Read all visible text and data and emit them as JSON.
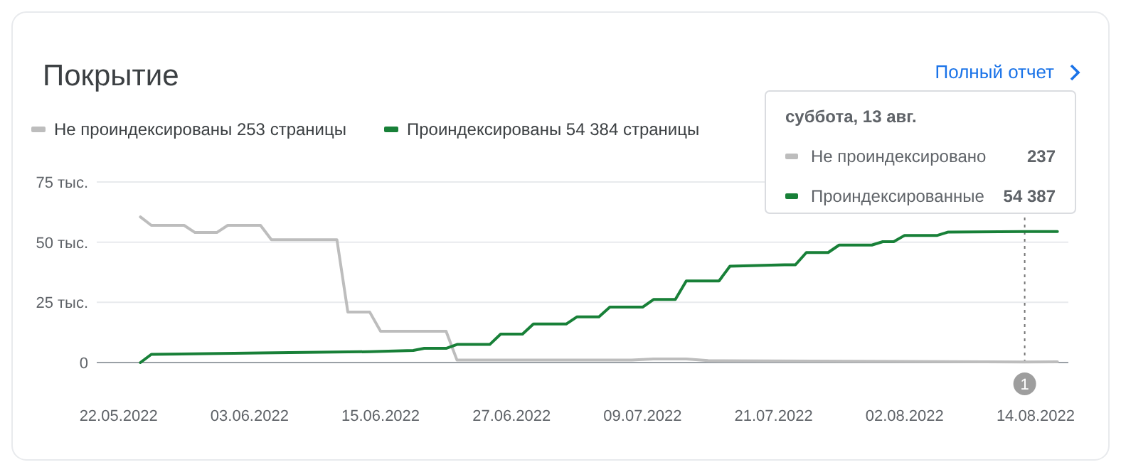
{
  "chart_data": {
    "type": "line",
    "title": "Покрытие",
    "legend": "top left",
    "grid": "y",
    "marker": "none",
    "line_style": "solid",
    "xlim": [
      "2022-05-20",
      "2022-08-17"
    ],
    "xticks": [
      {
        "value": "2022-05-22",
        "label": "22.05.2022"
      },
      {
        "value": "2022-06-03",
        "label": "03.06.2022"
      },
      {
        "value": "2022-06-15",
        "label": "15.06.2022"
      },
      {
        "value": "2022-06-27",
        "label": "27.06.2022"
      },
      {
        "value": "2022-07-09",
        "label": "09.07.2022"
      },
      {
        "value": "2022-07-21",
        "label": "21.07.2022"
      },
      {
        "value": "2022-08-02",
        "label": "02.08.2022"
      },
      {
        "value": "2022-08-14",
        "label": "14.08.2022"
      }
    ],
    "ylim": [
      0,
      75
    ],
    "yticks": [
      0,
      {
        "value": 25,
        "label": "25 тыс."
      },
      {
        "value": 50,
        "label": "50 тыс."
      },
      {
        "value": 75,
        "label": "75 тыс."
      }
    ],
    "series": [
      {
        "name": "Не проиндексированы 253 страницы",
        "color": "#bdbdbd",
        "x": [
          "2022-05-24",
          "2022-05-25",
          "2022-05-28",
          "2022-05-29",
          "2022-05-31",
          "2022-06-01",
          "2022-06-04",
          "2022-06-05",
          "2022-06-11",
          "2022-06-12",
          "2022-06-14",
          "2022-06-15",
          "2022-06-21",
          "2022-06-22",
          "2022-07-08",
          "2022-07-10",
          "2022-07-13",
          "2022-07-15",
          "2022-08-13",
          "2022-08-16"
        ],
        "values": [
          60.5,
          57,
          57,
          54,
          54,
          57,
          57,
          51,
          51,
          21,
          21,
          13,
          13,
          1,
          1,
          1.5,
          1.5,
          0.8,
          0.2,
          0.3
        ]
      },
      {
        "name": "Проиндексированы 54 384 страницы",
        "color": "#188038",
        "x": [
          "2022-05-24",
          "2022-05-25",
          "2022-06-04",
          "2022-06-14",
          "2022-06-18",
          "2022-06-19",
          "2022-06-21",
          "2022-06-22",
          "2022-06-25",
          "2022-06-26",
          "2022-06-28",
          "2022-06-29",
          "2022-07-02",
          "2022-07-03",
          "2022-07-05",
          "2022-07-06",
          "2022-07-09",
          "2022-07-10",
          "2022-07-12",
          "2022-07-13",
          "2022-07-16",
          "2022-07-17",
          "2022-07-22",
          "2022-07-23",
          "2022-07-24",
          "2022-07-26",
          "2022-07-27",
          "2022-07-30",
          "2022-07-31",
          "2022-08-01",
          "2022-08-02",
          "2022-08-05",
          "2022-08-06",
          "2022-08-13",
          "2022-08-16"
        ],
        "values": [
          0,
          3.4,
          4,
          4.5,
          5,
          5.9,
          5.9,
          7.5,
          7.5,
          11.8,
          11.8,
          16,
          16,
          19,
          19,
          23,
          23,
          26.2,
          26.2,
          33.9,
          33.9,
          40,
          40.6,
          40.6,
          45.7,
          45.7,
          48.8,
          48.8,
          50.2,
          50.2,
          52.8,
          52.8,
          54.2,
          54.4,
          54.4
        ]
      }
    ],
    "ref_lines": [
      {
        "axis": "x",
        "value": "2022-08-13",
        "color": "#757575",
        "line_style": "dotted"
      }
    ],
    "annotations": [
      "суббота, 13 авг.",
      "Не проиндексировано",
      "237",
      "Проиндексированные",
      "54 387",
      "Полный отчет",
      "1"
    ]
  }
}
